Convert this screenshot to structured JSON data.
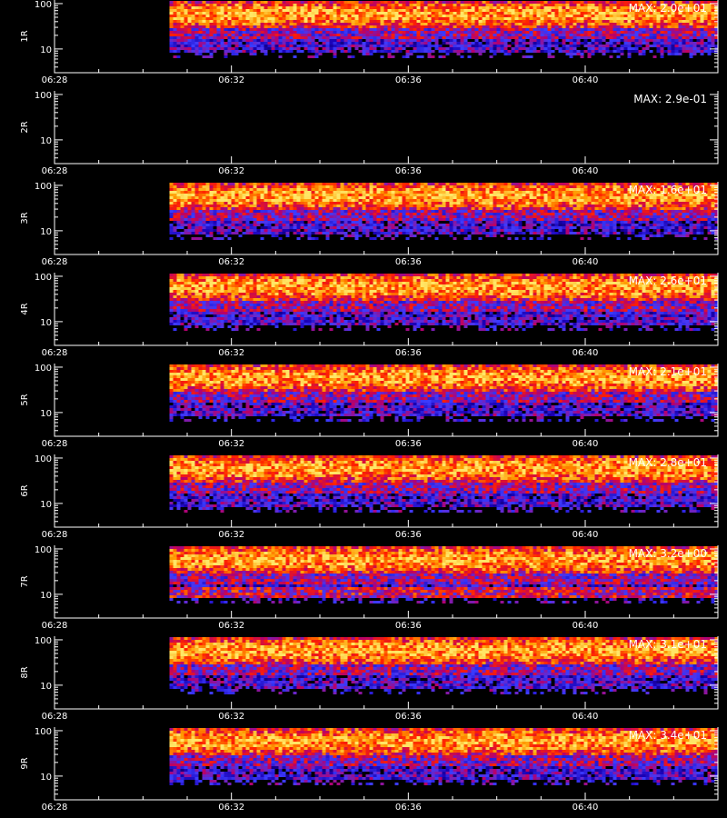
{
  "chart_data": {
    "type": "heatmap",
    "x_ticks": [
      "06:28",
      "06:32",
      "06:36",
      "06:40"
    ],
    "y_ticks": [
      10,
      100
    ],
    "y_scale": "log",
    "colors": {
      "background": "#000000",
      "axes": "#ffffff",
      "text": "#ffffff",
      "colormap": [
        "#000000",
        "#1a00b4",
        "#3c3cff",
        "#b4006e",
        "#ff2000",
        "#ff9a00",
        "#ffe666"
      ]
    },
    "panels": [
      {
        "label": "1R",
        "max_text": "MAX: 2.0e+01",
        "has_data": true
      },
      {
        "label": "2R",
        "max_text": "MAX: 2.9e-01",
        "has_data": false
      },
      {
        "label": "3R",
        "max_text": "MAX: 1.6e+01",
        "has_data": true
      },
      {
        "label": "4R",
        "max_text": "MAX: 2.6e+01",
        "has_data": true
      },
      {
        "label": "5R",
        "max_text": "MAX: 2.1e+01",
        "has_data": true
      },
      {
        "label": "6R",
        "max_text": "MAX: 2.8e+01",
        "has_data": true
      },
      {
        "label": "7R",
        "max_text": "MAX: 3.2e+00",
        "has_data": true
      },
      {
        "label": "8R",
        "max_text": "MAX: 3.1e+01",
        "has_data": true
      },
      {
        "label": "9R",
        "max_text": "MAX: 3.4e+01",
        "has_data": true
      }
    ]
  }
}
